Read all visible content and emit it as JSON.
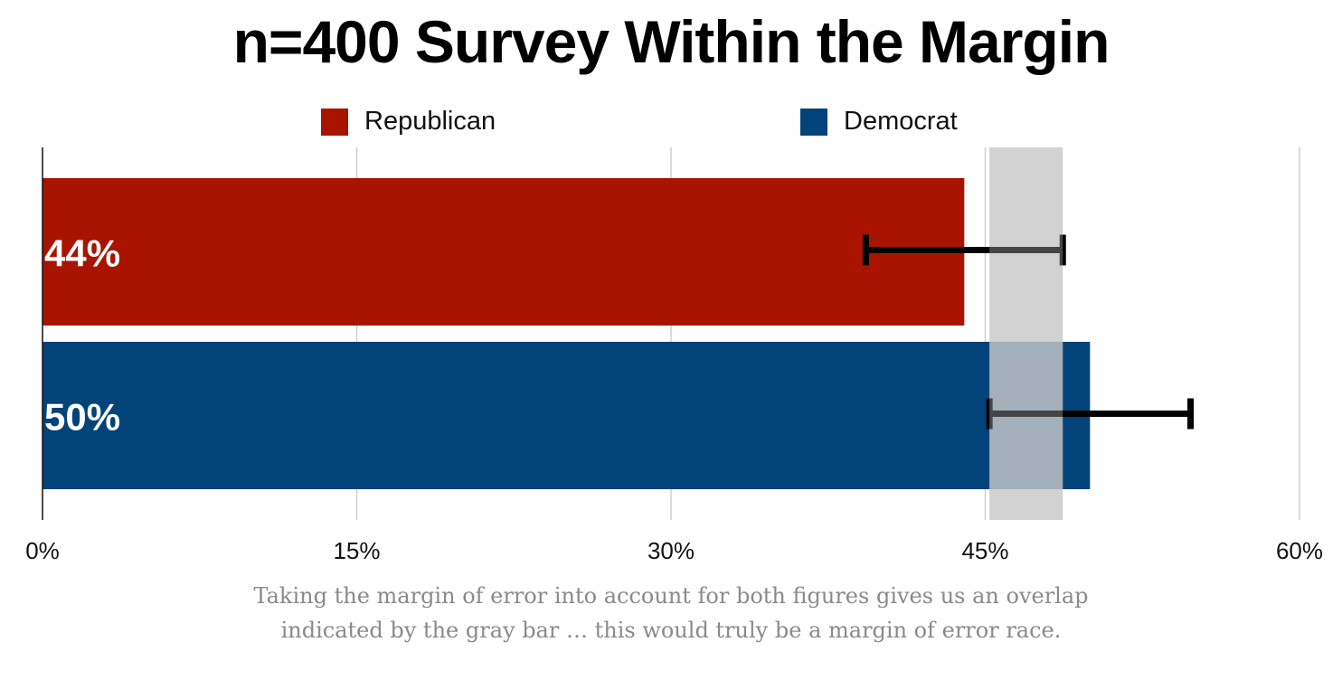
{
  "chart_data": {
    "type": "bar",
    "orientation": "horizontal",
    "title": "n=400 Survey Within the Margin",
    "series": [
      {
        "name": "Republican",
        "value": 44,
        "label": "44%",
        "error_low": 39.3,
        "error_high": 48.7,
        "color": "#a81400"
      },
      {
        "name": "Democrat",
        "value": 50,
        "label": "50%",
        "error_low": 45.2,
        "error_high": 54.8,
        "color": "#02437a"
      }
    ],
    "overlap_band": [
      45.2,
      48.7
    ],
    "xlim": [
      0,
      60
    ],
    "x_ticks": [
      0,
      15,
      30,
      45,
      60
    ],
    "x_tick_labels": [
      "0%",
      "15%",
      "30%",
      "45%",
      "60%"
    ],
    "grid": true,
    "legend_position": "top",
    "xlabel": "",
    "ylabel": ""
  },
  "caption": {
    "line1": "Taking the margin of error into account for both figures gives us an overlap",
    "line2": "indicated by the gray bar … this would truly be a margin of error race."
  }
}
